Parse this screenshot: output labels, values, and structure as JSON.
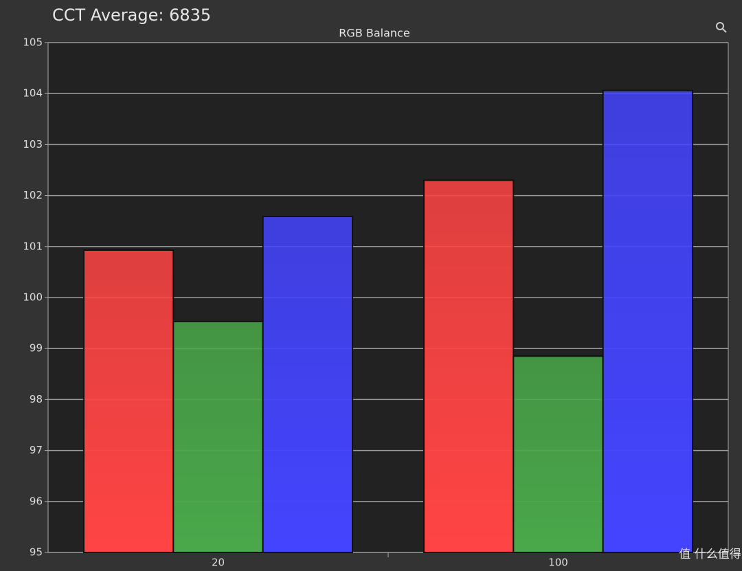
{
  "chart_data": {
    "type": "bar",
    "title": "CCT Average: 6835",
    "subtitle": "RGB Balance",
    "categories": [
      "20",
      "100"
    ],
    "series": [
      {
        "color": "#ff4444",
        "values": [
          100.93,
          102.3
        ]
      },
      {
        "color": "#4aa84a",
        "values": [
          99.53,
          98.85
        ]
      },
      {
        "color": "#4444ff",
        "values": [
          101.59,
          104.06
        ]
      }
    ],
    "ylim": [
      95,
      105
    ],
    "yticks": [
      95,
      96,
      97,
      98,
      99,
      100,
      101,
      102,
      103,
      104,
      105
    ],
    "grid": true,
    "watermark": "值 什么值得买"
  }
}
